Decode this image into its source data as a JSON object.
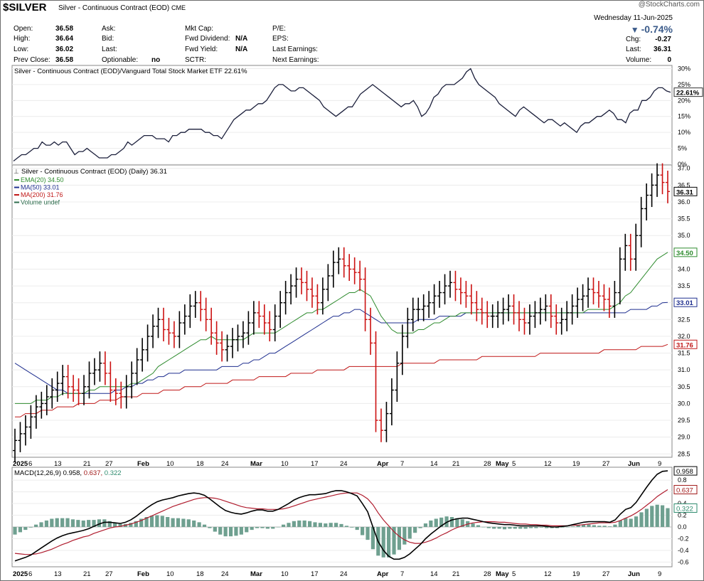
{
  "header": {
    "symbol": "$SILVER",
    "description": "Silver - Continuous Contract (EOD)",
    "exchange": "CME",
    "source": "@StockCharts.com",
    "date": "Wednesday  11-Jun-2025",
    "change_pct": "-0.74%",
    "arrow_icon": "down-triangle-icon",
    "quote": {
      "open_label": "Open:",
      "open": "36.58",
      "high_label": "High:",
      "high": "36.64",
      "low_label": "Low:",
      "low": "36.02",
      "prev_label": "Prev Close:",
      "prev": "36.58",
      "ask_label": "Ask:",
      "bid_label": "Bid:",
      "last_label": "Last:",
      "optionable_label": "Optionable:",
      "optionable": "no",
      "mktcap_label": "Mkt Cap:",
      "fwddiv_label": "Fwd Dividend:",
      "fwddiv": "N/A",
      "fwdyield_label": "Fwd Yield:",
      "fwdyield": "N/A",
      "sctr_label": "SCTR:",
      "pe_label": "P/E:",
      "eps_label": "EPS:",
      "lastearn_label": "Last Earnings:",
      "nextearn_label": "Next Earnings:",
      "chg_label": "Chg:",
      "chg": "-0.27",
      "last2_label": "Last:",
      "last": "36.31",
      "volume_label": "Volume:",
      "volume": "0"
    }
  },
  "chart_data": [
    {
      "type": "line",
      "panel": "relative-strength",
      "title": "Silver - Continuous Contract (EOD)/Vanguard Total Stock Market ETF 22.61%",
      "last_label": "22.61%",
      "ylim": [
        0,
        31
      ],
      "ticks": [
        0,
        5,
        10,
        15,
        20,
        25,
        30
      ],
      "tick_labels": [
        "0%",
        "5%",
        "10%",
        "15%",
        "20%",
        "25%",
        "30%"
      ],
      "values": [
        1,
        2,
        3,
        3,
        4,
        5,
        5,
        7,
        6,
        6,
        7,
        6,
        7,
        7,
        5,
        3,
        4,
        4,
        5,
        4,
        3,
        2,
        2,
        2,
        3,
        3,
        4,
        5,
        7,
        6,
        7,
        8,
        9,
        9,
        9,
        8,
        8,
        8,
        7,
        9,
        9,
        10,
        10,
        11,
        11,
        11,
        11,
        10,
        10,
        9,
        9,
        8,
        10,
        12,
        14,
        15,
        16,
        17,
        17,
        18,
        19,
        19,
        20,
        22,
        24,
        25,
        25,
        24,
        23,
        23,
        24,
        24,
        23,
        22,
        21,
        20,
        18,
        17,
        16,
        15,
        16,
        17,
        18,
        18,
        20,
        22,
        23,
        24,
        25,
        24,
        23,
        22,
        21,
        20,
        19,
        18,
        19,
        19,
        20,
        18,
        15,
        16,
        18,
        21,
        22,
        24,
        25,
        25,
        25,
        26,
        27,
        29,
        30,
        27,
        25,
        24,
        23,
        22,
        21,
        19,
        18,
        17,
        16,
        15,
        17,
        18,
        17,
        16,
        15,
        14,
        13,
        14,
        14,
        13,
        12,
        13,
        12,
        11,
        10,
        12,
        13,
        13,
        14,
        15,
        15,
        16,
        17,
        16,
        14,
        14,
        13,
        16,
        17,
        17,
        20,
        20,
        21,
        23,
        24,
        24,
        23,
        22.6
      ],
      "line_color": "#1b1f3b"
    },
    {
      "type": "ohlc",
      "panel": "price",
      "title": "Silver - Continuous Contract (EOD) (Daily) 36.31",
      "legend": [
        {
          "name": "EMA(20) 34.50",
          "color": "#2e8b2e"
        },
        {
          "name": "MA(50) 33.01",
          "color": "#1f2f8f"
        },
        {
          "name": "MA(200) 31.76",
          "color": "#c01818"
        },
        {
          "name": "Volume undef",
          "color": "#2e6e4e"
        }
      ],
      "ylim": [
        28.4,
        37.1
      ],
      "ticks": [
        28.5,
        29.0,
        29.5,
        30.0,
        30.5,
        31.0,
        31.5,
        32.0,
        32.5,
        33.0,
        33.5,
        34.0,
        34.5,
        35.0,
        35.5,
        36.0,
        36.5,
        37.0
      ],
      "tick_labels": [
        "28.5",
        "29.0",
        "29.5",
        "30.0",
        "30.5",
        "31.0",
        "31.5",
        "32.0",
        "32.5",
        "33.0",
        "33.5",
        "34.0",
        "34.5",
        "35.0",
        "35.5",
        "36.0",
        "36.5",
        "37.0"
      ],
      "value_labels": [
        {
          "text": "36.31",
          "y": 36.31,
          "color": "#000000"
        },
        {
          "text": "34.50",
          "y": 34.5,
          "color": "#2e8b2e"
        },
        {
          "text": "33.01",
          "y": 33.01,
          "color": "#1f2f8f"
        },
        {
          "text": "31.76",
          "y": 31.76,
          "color": "#c01818"
        }
      ],
      "close": [
        28.9,
        29.1,
        29.3,
        29.6,
        29.9,
        30.0,
        30.2,
        30.4,
        30.6,
        30.8,
        30.5,
        30.4,
        30.3,
        30.5,
        30.9,
        31.0,
        31.2,
        30.9,
        30.4,
        30.3,
        30.2,
        30.5,
        30.9,
        31.3,
        31.6,
        32.0,
        32.3,
        32.5,
        32.2,
        32.1,
        32.0,
        32.4,
        32.6,
        32.9,
        33.0,
        32.8,
        32.5,
        32.1,
        31.8,
        31.6,
        31.7,
        31.9,
        32.0,
        32.1,
        32.4,
        32.7,
        32.6,
        32.4,
        32.2,
        32.6,
        33.0,
        33.3,
        33.5,
        33.7,
        33.6,
        33.4,
        33.2,
        33.0,
        33.4,
        33.8,
        34.2,
        34.3,
        34.1,
        34.0,
        33.9,
        33.7,
        32.5,
        31.8,
        29.5,
        29.2,
        29.7,
        30.4,
        31.2,
        32.0,
        32.5,
        32.8,
        32.8,
        32.9,
        33.0,
        33.2,
        33.3,
        33.5,
        33.6,
        33.4,
        33.3,
        33.2,
        33.0,
        32.8,
        32.7,
        32.6,
        32.6,
        32.7,
        32.8,
        32.9,
        32.7,
        32.5,
        32.4,
        32.6,
        32.7,
        32.8,
        32.9,
        32.6,
        32.4,
        32.5,
        32.7,
        32.9,
        33.1,
        33.2,
        33.4,
        33.3,
        33.2,
        33.1,
        32.9,
        33.3,
        34.3,
        34.7,
        34.3,
        35.0,
        35.8,
        36.2,
        36.5,
        36.8,
        36.58,
        36.31
      ],
      "open": [
        28.6,
        28.9,
        29.1,
        29.3,
        29.6,
        29.9,
        30.0,
        30.2,
        30.4,
        30.6,
        30.8,
        30.5,
        30.4,
        30.3,
        30.5,
        30.9,
        31.0,
        31.2,
        30.9,
        30.4,
        30.3,
        30.2,
        30.5,
        30.9,
        31.3,
        31.6,
        32.0,
        32.3,
        32.5,
        32.2,
        32.1,
        32.0,
        32.4,
        32.6,
        32.9,
        33.0,
        32.8,
        32.5,
        32.1,
        31.8,
        31.6,
        31.7,
        31.9,
        32.0,
        32.1,
        32.4,
        32.7,
        32.6,
        32.4,
        32.2,
        32.6,
        33.0,
        33.3,
        33.5,
        33.7,
        33.6,
        33.4,
        33.2,
        33.0,
        33.4,
        33.8,
        34.2,
        34.3,
        34.1,
        34.0,
        33.9,
        33.7,
        32.5,
        31.8,
        29.5,
        29.2,
        29.7,
        30.4,
        31.2,
        32.0,
        32.5,
        32.8,
        32.8,
        32.9,
        33.0,
        33.2,
        33.3,
        33.5,
        33.6,
        33.4,
        33.3,
        33.2,
        33.0,
        32.8,
        32.7,
        32.6,
        32.6,
        32.7,
        32.8,
        32.9,
        32.7,
        32.5,
        32.4,
        32.6,
        32.7,
        32.8,
        32.9,
        32.6,
        32.4,
        32.5,
        32.7,
        32.9,
        33.1,
        33.2,
        33.4,
        33.3,
        33.2,
        33.1,
        32.9,
        33.3,
        34.3,
        34.7,
        34.3,
        35.0,
        35.8,
        36.2,
        36.5,
        36.8,
        36.58
      ],
      "ema20": [
        30.0,
        30.0,
        30.0,
        30.0,
        30.1,
        30.1,
        30.1,
        30.2,
        30.2,
        30.3,
        30.3,
        30.3,
        30.3,
        30.3,
        30.4,
        30.4,
        30.5,
        30.5,
        30.5,
        30.5,
        30.5,
        30.5,
        30.6,
        30.6,
        30.7,
        30.8,
        30.9,
        31.1,
        31.2,
        31.3,
        31.4,
        31.5,
        31.6,
        31.7,
        31.8,
        31.9,
        31.9,
        32.0,
        31.9,
        31.9,
        31.9,
        31.9,
        31.9,
        31.9,
        32.0,
        32.1,
        32.1,
        32.1,
        32.1,
        32.1,
        32.2,
        32.3,
        32.4,
        32.5,
        32.6,
        32.7,
        32.7,
        32.8,
        32.8,
        32.9,
        33.0,
        33.1,
        33.2,
        33.3,
        33.3,
        33.4,
        33.3,
        33.2,
        32.9,
        32.6,
        32.4,
        32.2,
        32.1,
        32.1,
        32.1,
        32.1,
        32.2,
        32.2,
        32.3,
        32.4,
        32.4,
        32.5,
        32.6,
        32.6,
        32.7,
        32.7,
        32.7,
        32.7,
        32.7,
        32.7,
        32.7,
        32.7,
        32.7,
        32.7,
        32.7,
        32.7,
        32.7,
        32.7,
        32.7,
        32.7,
        32.7,
        32.7,
        32.7,
        32.7,
        32.7,
        32.7,
        32.7,
        32.7,
        32.8,
        32.8,
        32.8,
        32.8,
        32.8,
        32.9,
        33.0,
        33.2,
        33.3,
        33.5,
        33.7,
        33.9,
        34.1,
        34.3,
        34.4,
        34.5
      ],
      "ma50": [
        31.2,
        31.1,
        31.0,
        30.9,
        30.8,
        30.7,
        30.6,
        30.5,
        30.4,
        30.4,
        30.3,
        30.3,
        30.3,
        30.3,
        30.3,
        30.3,
        30.3,
        30.3,
        30.3,
        30.4,
        30.4,
        30.5,
        30.5,
        30.6,
        30.6,
        30.7,
        30.7,
        30.8,
        30.8,
        30.9,
        30.9,
        30.9,
        31.0,
        31.0,
        31.0,
        31.0,
        31.0,
        31.0,
        31.0,
        31.1,
        31.1,
        31.1,
        31.1,
        31.2,
        31.2,
        31.3,
        31.3,
        31.4,
        31.5,
        31.5,
        31.6,
        31.7,
        31.8,
        31.9,
        32.0,
        32.1,
        32.2,
        32.3,
        32.4,
        32.5,
        32.6,
        32.6,
        32.7,
        32.7,
        32.8,
        32.8,
        32.7,
        32.6,
        32.5,
        32.4,
        32.4,
        32.4,
        32.4,
        32.4,
        32.4,
        32.4,
        32.5,
        32.5,
        32.5,
        32.5,
        32.6,
        32.6,
        32.6,
        32.6,
        32.6,
        32.7,
        32.7,
        32.7,
        32.7,
        32.7,
        32.7,
        32.7,
        32.7,
        32.7,
        32.7,
        32.7,
        32.7,
        32.7,
        32.7,
        32.7,
        32.7,
        32.7,
        32.7,
        32.7,
        32.7,
        32.7,
        32.7,
        32.7,
        32.7,
        32.7,
        32.7,
        32.7,
        32.7,
        32.7,
        32.7,
        32.7,
        32.8,
        32.8,
        32.8,
        32.8,
        32.9,
        32.9,
        33.0,
        33.01
      ],
      "ma200": [
        29.6,
        29.6,
        29.7,
        29.7,
        29.7,
        29.8,
        29.8,
        29.8,
        29.9,
        29.9,
        29.9,
        29.9,
        30.0,
        30.0,
        30.0,
        30.0,
        30.1,
        30.1,
        30.1,
        30.1,
        30.2,
        30.2,
        30.2,
        30.2,
        30.3,
        30.3,
        30.3,
        30.3,
        30.4,
        30.4,
        30.4,
        30.4,
        30.5,
        30.5,
        30.5,
        30.5,
        30.6,
        30.6,
        30.6,
        30.6,
        30.6,
        30.7,
        30.7,
        30.7,
        30.7,
        30.7,
        30.8,
        30.8,
        30.8,
        30.8,
        30.8,
        30.8,
        30.9,
        30.9,
        30.9,
        30.9,
        30.9,
        31.0,
        31.0,
        31.0,
        31.0,
        31.0,
        31.0,
        31.1,
        31.1,
        31.1,
        31.1,
        31.1,
        31.1,
        31.1,
        31.1,
        31.1,
        31.1,
        31.2,
        31.2,
        31.2,
        31.2,
        31.2,
        31.2,
        31.2,
        31.3,
        31.3,
        31.3,
        31.3,
        31.3,
        31.3,
        31.3,
        31.3,
        31.4,
        31.4,
        31.4,
        31.4,
        31.4,
        31.4,
        31.4,
        31.4,
        31.4,
        31.4,
        31.4,
        31.5,
        31.5,
        31.5,
        31.5,
        31.5,
        31.5,
        31.5,
        31.5,
        31.5,
        31.5,
        31.5,
        31.5,
        31.6,
        31.6,
        31.6,
        31.6,
        31.6,
        31.6,
        31.6,
        31.7,
        31.7,
        31.7,
        31.7,
        31.7,
        31.76
      ]
    },
    {
      "type": "macd",
      "panel": "macd",
      "title": "MACD(12,26,9)",
      "values_text": {
        "macd": "0.958",
        "signal": "0.637",
        "hist": "0.322"
      },
      "ylim": [
        -0.68,
        1.02
      ],
      "ticks": [
        -0.6,
        -0.4,
        -0.2,
        0.0,
        0.2,
        0.4,
        0.6,
        0.8
      ],
      "tick_labels": [
        "-0.6",
        "-0.4",
        "-0.2",
        "0.0",
        "0.2",
        "0.4",
        "0.6",
        "0.8"
      ],
      "value_labels": [
        {
          "text": "0.958",
          "y": 0.958,
          "color": "#000000"
        },
        {
          "text": "0.637",
          "y": 0.637,
          "color": "#a01818"
        },
        {
          "text": "0.322",
          "y": 0.322,
          "color": "#2e8b6e"
        }
      ],
      "macd": [
        -0.58,
        -0.55,
        -0.52,
        -0.48,
        -0.42,
        -0.36,
        -0.3,
        -0.24,
        -0.19,
        -0.15,
        -0.12,
        -0.1,
        -0.08,
        -0.06,
        -0.03,
        0.01,
        0.05,
        0.08,
        0.08,
        0.07,
        0.06,
        0.08,
        0.12,
        0.18,
        0.25,
        0.32,
        0.38,
        0.43,
        0.46,
        0.48,
        0.5,
        0.53,
        0.55,
        0.57,
        0.58,
        0.57,
        0.54,
        0.48,
        0.41,
        0.34,
        0.28,
        0.25,
        0.23,
        0.22,
        0.24,
        0.27,
        0.29,
        0.29,
        0.27,
        0.27,
        0.3,
        0.35,
        0.4,
        0.46,
        0.5,
        0.53,
        0.55,
        0.55,
        0.56,
        0.57,
        0.6,
        0.62,
        0.62,
        0.6,
        0.57,
        0.53,
        0.4,
        0.26,
        0.0,
        -0.25,
        -0.4,
        -0.5,
        -0.55,
        -0.55,
        -0.52,
        -0.46,
        -0.38,
        -0.3,
        -0.2,
        -0.12,
        -0.05,
        0.02,
        0.08,
        0.12,
        0.14,
        0.15,
        0.15,
        0.13,
        0.11,
        0.09,
        0.07,
        0.06,
        0.05,
        0.04,
        0.04,
        0.03,
        0.02,
        0.02,
        0.02,
        0.02,
        0.02,
        0.01,
        0.0,
        0.0,
        0.01,
        0.02,
        0.04,
        0.06,
        0.08,
        0.09,
        0.09,
        0.09,
        0.09,
        0.08,
        0.12,
        0.22,
        0.3,
        0.33,
        0.42,
        0.55,
        0.68,
        0.8,
        0.9,
        0.95,
        0.958
      ],
      "signal": [
        -0.45,
        -0.46,
        -0.47,
        -0.47,
        -0.46,
        -0.44,
        -0.41,
        -0.38,
        -0.34,
        -0.3,
        -0.27,
        -0.23,
        -0.2,
        -0.17,
        -0.15,
        -0.11,
        -0.08,
        -0.05,
        -0.02,
        0.0,
        0.01,
        0.03,
        0.05,
        0.08,
        0.11,
        0.15,
        0.19,
        0.23,
        0.27,
        0.31,
        0.35,
        0.38,
        0.41,
        0.44,
        0.47,
        0.49,
        0.5,
        0.5,
        0.49,
        0.47,
        0.44,
        0.41,
        0.38,
        0.35,
        0.33,
        0.32,
        0.31,
        0.31,
        0.3,
        0.3,
        0.3,
        0.31,
        0.33,
        0.36,
        0.39,
        0.42,
        0.45,
        0.47,
        0.49,
        0.51,
        0.53,
        0.55,
        0.57,
        0.58,
        0.58,
        0.58,
        0.54,
        0.48,
        0.38,
        0.24,
        0.12,
        0.02,
        -0.08,
        -0.16,
        -0.22,
        -0.26,
        -0.28,
        -0.28,
        -0.26,
        -0.23,
        -0.19,
        -0.14,
        -0.1,
        -0.05,
        -0.01,
        0.02,
        0.05,
        0.07,
        0.08,
        0.09,
        0.09,
        0.09,
        0.08,
        0.08,
        0.07,
        0.06,
        0.05,
        0.05,
        0.04,
        0.04,
        0.03,
        0.03,
        0.02,
        0.02,
        0.02,
        0.02,
        0.03,
        0.03,
        0.04,
        0.05,
        0.06,
        0.07,
        0.07,
        0.07,
        0.08,
        0.11,
        0.15,
        0.19,
        0.24,
        0.3,
        0.37,
        0.44,
        0.52,
        0.58,
        0.637
      ]
    }
  ],
  "x_axis": {
    "labels": [
      "2025",
      "6",
      "13",
      "21",
      "27",
      "Feb",
      "10",
      "18",
      "24",
      "Mar",
      "10",
      "17",
      "24",
      "Apr",
      "7",
      "14",
      "21",
      "28",
      "May",
      "5",
      "12",
      "19",
      "27",
      "Jun",
      "9"
    ],
    "bold_labels": [
      "2025",
      "Feb",
      "Mar",
      "Apr",
      "May",
      "Jun"
    ]
  }
}
